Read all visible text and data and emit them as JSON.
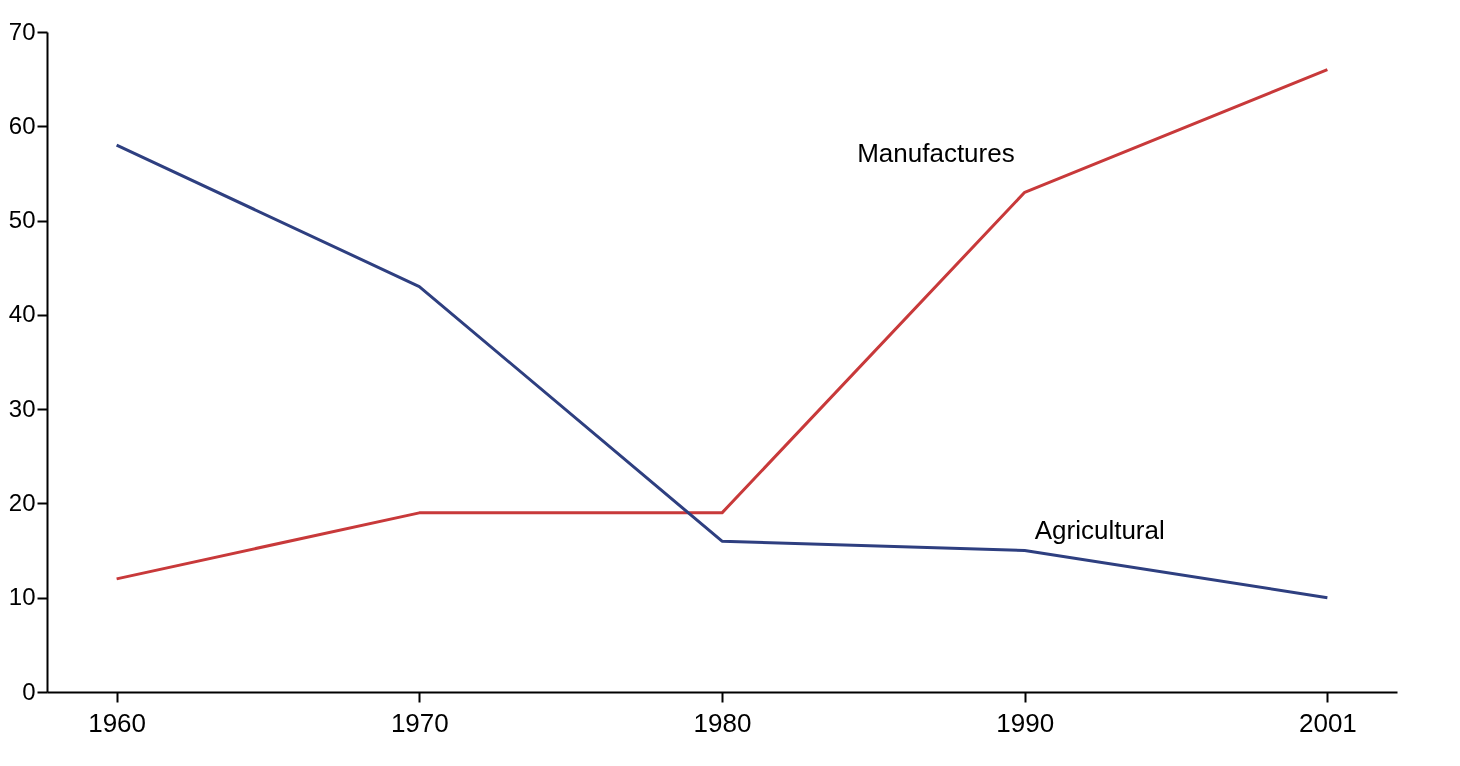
{
  "chart_data": {
    "type": "line",
    "categories": [
      "1960",
      "1970",
      "1980",
      "1990",
      "2001"
    ],
    "series": [
      {
        "name": "Manufactures",
        "color": "#c8393a",
        "values": [
          12,
          19,
          19,
          53,
          66
        ]
      },
      {
        "name": "Agricultural",
        "color": "#2e3f80",
        "values": [
          58,
          43,
          16,
          15,
          10
        ]
      }
    ],
    "ylim": [
      0,
      70
    ],
    "yticks": [
      0,
      10,
      20,
      30,
      40,
      50,
      60,
      70
    ],
    "grid": false,
    "legend": false,
    "marker": "none",
    "line_style": "solid"
  }
}
